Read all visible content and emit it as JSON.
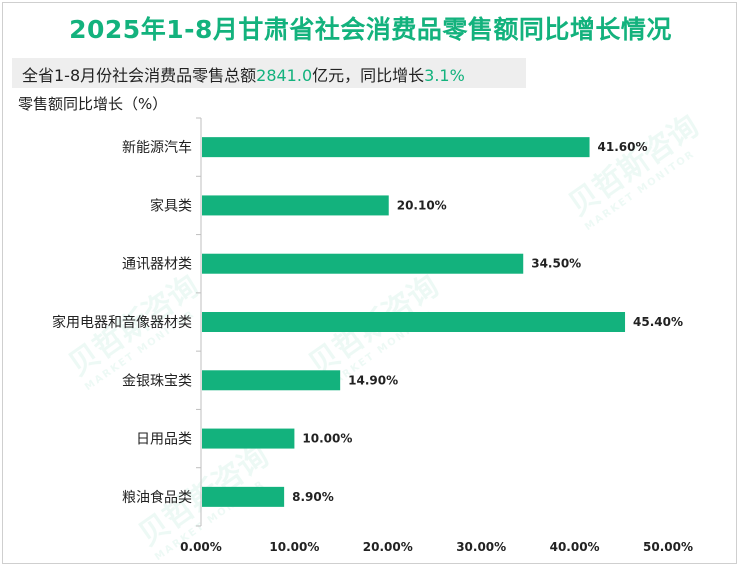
{
  "title": "2025年1-8月甘肃省社会消费品零售额同比增长情况",
  "subtitle": {
    "prefix": "全省1-8月份社会消费品零售总额",
    "total": "2841.0",
    "middle": "亿元，同比增长",
    "growth": "3.1%"
  },
  "watermark": {
    "cn": "贝哲斯咨询",
    "en": "MARKET MONITOR"
  },
  "colors": {
    "accent": "#13b27d",
    "bar": "#13b27d"
  },
  "chart_data": {
    "type": "bar",
    "orientation": "horizontal",
    "ylabel": "零售额同比增长（%）",
    "categories": [
      "新能源汽车",
      "家具类",
      "通讯器材类",
      "家用电器和音像器材类",
      "金银珠宝类",
      "日用品类",
      "粮油食品类"
    ],
    "values": [
      41.6,
      20.1,
      34.5,
      45.4,
      14.9,
      10.0,
      8.9
    ],
    "value_labels": [
      "41.60%",
      "20.10%",
      "34.50%",
      "45.40%",
      "14.90%",
      "10.00%",
      "8.90%"
    ],
    "xlim": [
      0,
      50
    ],
    "xticks": [
      "0.00%",
      "10.00%",
      "20.00%",
      "30.00%",
      "40.00%",
      "50.00%"
    ],
    "grid": false,
    "legend": "none"
  }
}
